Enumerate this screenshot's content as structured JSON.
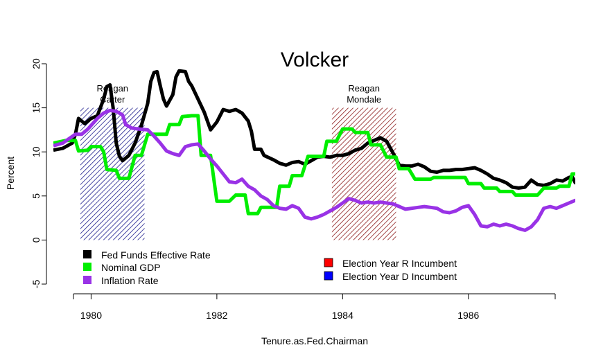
{
  "chart_data": {
    "type": "line",
    "title": "Volcker",
    "xlabel": "Tenure.as.Fed.Chairman",
    "ylabel": "Percent",
    "xlim": [
      1979.4,
      1987.7
    ],
    "ylim": [
      -5,
      20
    ],
    "x_ticks": [
      "1980",
      "1982",
      "1984",
      "1986"
    ],
    "y_ticks": [
      "-5",
      "0",
      "5",
      "10",
      "15",
      "20"
    ],
    "grid": false,
    "legend_left": [
      "Fed Funds Effective Rate",
      "Nominal GDP",
      "Inflation Rate"
    ],
    "legend_right": [
      "Election Year R Incumbent",
      "Election Year D Incumbent"
    ],
    "election_bands": [
      {
        "label_top": "Reagan",
        "label_bottom": "Carter",
        "start": 1979.83,
        "end": 1980.85,
        "incumbent": "D",
        "ymin": 0,
        "ymax": 15
      },
      {
        "label_top": "Reagan",
        "label_bottom": "Mondale",
        "start": 1983.83,
        "end": 1984.85,
        "incumbent": "R",
        "ymin": 0,
        "ymax": 15
      }
    ],
    "series": [
      {
        "name": "Fed Funds Effective Rate",
        "color": "#000000",
        "points": [
          [
            1979.4,
            10.2
          ],
          [
            1979.55,
            10.4
          ],
          [
            1979.7,
            11.0
          ],
          [
            1979.75,
            12.0
          ],
          [
            1979.8,
            13.8
          ],
          [
            1979.9,
            13.2
          ],
          [
            1980.0,
            13.8
          ],
          [
            1980.1,
            14.1
          ],
          [
            1980.2,
            16.0
          ],
          [
            1980.25,
            17.4
          ],
          [
            1980.3,
            17.6
          ],
          [
            1980.35,
            15.0
          ],
          [
            1980.4,
            11.0
          ],
          [
            1980.45,
            9.5
          ],
          [
            1980.5,
            9.0
          ],
          [
            1980.6,
            9.6
          ],
          [
            1980.7,
            11.0
          ],
          [
            1980.8,
            13.0
          ],
          [
            1980.9,
            15.5
          ],
          [
            1980.95,
            18.0
          ],
          [
            1981.0,
            19.0
          ],
          [
            1981.05,
            19.1
          ],
          [
            1981.1,
            17.5
          ],
          [
            1981.15,
            16.0
          ],
          [
            1981.2,
            15.2
          ],
          [
            1981.3,
            16.5
          ],
          [
            1981.35,
            18.5
          ],
          [
            1981.4,
            19.2
          ],
          [
            1981.5,
            19.1
          ],
          [
            1981.55,
            18.0
          ],
          [
            1981.6,
            17.5
          ],
          [
            1981.7,
            16.0
          ],
          [
            1981.8,
            14.5
          ],
          [
            1981.9,
            12.5
          ],
          [
            1982.0,
            13.4
          ],
          [
            1982.1,
            14.8
          ],
          [
            1982.2,
            14.6
          ],
          [
            1982.3,
            14.8
          ],
          [
            1982.4,
            14.4
          ],
          [
            1982.5,
            13.5
          ],
          [
            1982.55,
            12.3
          ],
          [
            1982.6,
            10.3
          ],
          [
            1982.7,
            10.3
          ],
          [
            1982.75,
            9.6
          ],
          [
            1982.9,
            9.1
          ],
          [
            1983.0,
            8.7
          ],
          [
            1983.1,
            8.5
          ],
          [
            1983.2,
            8.8
          ],
          [
            1983.3,
            8.9
          ],
          [
            1983.4,
            8.6
          ],
          [
            1983.5,
            9.0
          ],
          [
            1983.6,
            9.4
          ],
          [
            1983.7,
            9.5
          ],
          [
            1983.8,
            9.4
          ],
          [
            1983.9,
            9.6
          ],
          [
            1984.0,
            9.6
          ],
          [
            1984.1,
            9.8
          ],
          [
            1984.2,
            10.2
          ],
          [
            1984.3,
            10.4
          ],
          [
            1984.4,
            11.0
          ],
          [
            1984.5,
            11.3
          ],
          [
            1984.6,
            11.6
          ],
          [
            1984.7,
            11.2
          ],
          [
            1984.8,
            9.9
          ],
          [
            1984.9,
            8.5
          ],
          [
            1985.0,
            8.4
          ],
          [
            1985.1,
            8.4
          ],
          [
            1985.2,
            8.6
          ],
          [
            1985.3,
            8.3
          ],
          [
            1985.4,
            7.8
          ],
          [
            1985.5,
            7.7
          ],
          [
            1985.6,
            7.9
          ],
          [
            1985.7,
            7.9
          ],
          [
            1985.8,
            8.0
          ],
          [
            1985.9,
            8.0
          ],
          [
            1986.0,
            8.1
          ],
          [
            1986.1,
            8.2
          ],
          [
            1986.2,
            7.9
          ],
          [
            1986.3,
            7.5
          ],
          [
            1986.4,
            7.0
          ],
          [
            1986.5,
            6.8
          ],
          [
            1986.6,
            6.5
          ],
          [
            1986.7,
            6.0
          ],
          [
            1986.8,
            5.9
          ],
          [
            1986.9,
            6.0
          ],
          [
            1987.0,
            6.8
          ],
          [
            1987.1,
            6.3
          ],
          [
            1987.2,
            6.2
          ],
          [
            1987.3,
            6.4
          ],
          [
            1987.4,
            6.8
          ],
          [
            1987.5,
            6.7
          ],
          [
            1987.6,
            7.1
          ],
          [
            1987.65,
            7.2
          ],
          [
            1987.7,
            6.5
          ],
          [
            1987.75,
            6.8
          ],
          [
            1987.8,
            6.9
          ]
        ]
      },
      {
        "name": "Nominal GDP",
        "color": "#00ee00",
        "points": [
          [
            1979.4,
            11.0
          ],
          [
            1979.6,
            11.3
          ],
          [
            1979.75,
            11.3
          ],
          [
            1979.8,
            10.1
          ],
          [
            1979.95,
            10.2
          ],
          [
            1980.0,
            10.6
          ],
          [
            1980.15,
            10.6
          ],
          [
            1980.2,
            10.0
          ],
          [
            1980.25,
            8.0
          ],
          [
            1980.4,
            7.9
          ],
          [
            1980.45,
            7.0
          ],
          [
            1980.6,
            7.0
          ],
          [
            1980.7,
            9.6
          ],
          [
            1980.8,
            9.6
          ],
          [
            1980.9,
            12.0
          ],
          [
            1981.0,
            12.0
          ],
          [
            1981.1,
            12.0
          ],
          [
            1981.2,
            12.0
          ],
          [
            1981.25,
            13.1
          ],
          [
            1981.4,
            13.1
          ],
          [
            1981.45,
            14.0
          ],
          [
            1981.6,
            14.1
          ],
          [
            1981.7,
            14.1
          ],
          [
            1981.75,
            9.6
          ],
          [
            1981.9,
            9.6
          ],
          [
            1982.0,
            4.4
          ],
          [
            1982.2,
            4.4
          ],
          [
            1982.3,
            5.1
          ],
          [
            1982.45,
            5.1
          ],
          [
            1982.5,
            3.0
          ],
          [
            1982.65,
            3.0
          ],
          [
            1982.7,
            3.7
          ],
          [
            1982.85,
            3.7
          ],
          [
            1982.95,
            3.7
          ],
          [
            1983.0,
            6.1
          ],
          [
            1983.15,
            6.1
          ],
          [
            1983.2,
            7.3
          ],
          [
            1983.35,
            7.3
          ],
          [
            1983.45,
            9.5
          ],
          [
            1983.55,
            9.5
          ],
          [
            1983.7,
            9.5
          ],
          [
            1983.75,
            11.2
          ],
          [
            1983.9,
            11.2
          ],
          [
            1984.0,
            12.6
          ],
          [
            1984.15,
            12.6
          ],
          [
            1984.2,
            12.2
          ],
          [
            1984.4,
            12.2
          ],
          [
            1984.45,
            10.8
          ],
          [
            1984.6,
            10.8
          ],
          [
            1984.7,
            9.4
          ],
          [
            1984.85,
            9.4
          ],
          [
            1984.9,
            8.1
          ],
          [
            1985.05,
            8.1
          ],
          [
            1985.15,
            6.9
          ],
          [
            1985.4,
            6.9
          ],
          [
            1985.45,
            7.1
          ],
          [
            1985.95,
            7.1
          ],
          [
            1986.0,
            6.4
          ],
          [
            1986.2,
            6.4
          ],
          [
            1986.25,
            5.9
          ],
          [
            1986.45,
            5.9
          ],
          [
            1986.5,
            5.5
          ],
          [
            1986.7,
            5.5
          ],
          [
            1986.75,
            5.1
          ],
          [
            1987.1,
            5.1
          ],
          [
            1987.2,
            5.9
          ],
          [
            1987.4,
            5.9
          ],
          [
            1987.45,
            6.1
          ],
          [
            1987.6,
            6.1
          ],
          [
            1987.65,
            7.5
          ],
          [
            1987.8,
            7.5
          ]
        ]
      },
      {
        "name": "Inflation Rate",
        "color": "#9932e6",
        "points": [
          [
            1979.4,
            10.7
          ],
          [
            1979.55,
            11.0
          ],
          [
            1979.65,
            11.5
          ],
          [
            1979.75,
            12.0
          ],
          [
            1979.85,
            12.0
          ],
          [
            1979.95,
            12.6
          ],
          [
            1980.1,
            13.8
          ],
          [
            1980.2,
            14.4
          ],
          [
            1980.3,
            14.7
          ],
          [
            1980.4,
            14.6
          ],
          [
            1980.5,
            14.2
          ],
          [
            1980.55,
            13.1
          ],
          [
            1980.65,
            12.7
          ],
          [
            1980.75,
            12.6
          ],
          [
            1980.9,
            12.5
          ],
          [
            1981.0,
            11.8
          ],
          [
            1981.1,
            11.0
          ],
          [
            1981.2,
            10.1
          ],
          [
            1981.3,
            9.8
          ],
          [
            1981.4,
            9.6
          ],
          [
            1981.5,
            10.6
          ],
          [
            1981.6,
            10.8
          ],
          [
            1981.7,
            10.9
          ],
          [
            1981.8,
            10.1
          ],
          [
            1981.9,
            9.2
          ],
          [
            1982.0,
            8.4
          ],
          [
            1982.1,
            7.5
          ],
          [
            1982.2,
            6.6
          ],
          [
            1982.3,
            6.5
          ],
          [
            1982.4,
            6.9
          ],
          [
            1982.5,
            6.1
          ],
          [
            1982.6,
            5.7
          ],
          [
            1982.7,
            5.0
          ],
          [
            1982.8,
            4.6
          ],
          [
            1982.9,
            3.9
          ],
          [
            1983.0,
            3.6
          ],
          [
            1983.1,
            3.5
          ],
          [
            1983.2,
            3.9
          ],
          [
            1983.3,
            3.6
          ],
          [
            1983.4,
            2.6
          ],
          [
            1983.5,
            2.4
          ],
          [
            1983.6,
            2.6
          ],
          [
            1983.7,
            2.9
          ],
          [
            1983.8,
            3.3
          ],
          [
            1983.9,
            3.7
          ],
          [
            1984.0,
            4.2
          ],
          [
            1984.1,
            4.7
          ],
          [
            1984.2,
            4.5
          ],
          [
            1984.3,
            4.2
          ],
          [
            1984.4,
            4.3
          ],
          [
            1984.5,
            4.2
          ],
          [
            1984.6,
            4.3
          ],
          [
            1984.7,
            4.2
          ],
          [
            1984.8,
            4.1
          ],
          [
            1984.9,
            3.8
          ],
          [
            1985.0,
            3.5
          ],
          [
            1985.1,
            3.6
          ],
          [
            1985.2,
            3.7
          ],
          [
            1985.3,
            3.8
          ],
          [
            1985.4,
            3.7
          ],
          [
            1985.5,
            3.6
          ],
          [
            1985.6,
            3.2
          ],
          [
            1985.7,
            3.1
          ],
          [
            1985.8,
            3.3
          ],
          [
            1985.9,
            3.7
          ],
          [
            1986.0,
            3.9
          ],
          [
            1986.1,
            2.9
          ],
          [
            1986.2,
            1.6
          ],
          [
            1986.3,
            1.5
          ],
          [
            1986.4,
            1.8
          ],
          [
            1986.5,
            1.6
          ],
          [
            1986.6,
            1.8
          ],
          [
            1986.7,
            1.6
          ],
          [
            1986.8,
            1.3
          ],
          [
            1986.9,
            1.1
          ],
          [
            1987.0,
            1.5
          ],
          [
            1987.1,
            2.3
          ],
          [
            1987.2,
            3.6
          ],
          [
            1987.3,
            3.8
          ],
          [
            1987.4,
            3.6
          ],
          [
            1987.5,
            3.9
          ],
          [
            1987.6,
            4.2
          ],
          [
            1987.7,
            4.5
          ],
          [
            1987.8,
            4.4
          ]
        ]
      }
    ],
    "legend_colors": {
      "r_incumbent": "#ff0000",
      "d_incumbent": "#0000ff"
    }
  }
}
